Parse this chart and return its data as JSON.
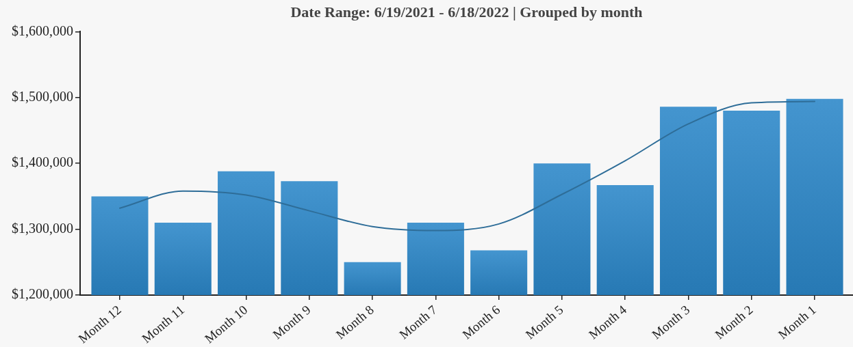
{
  "chart_data": {
    "type": "bar",
    "title": "Date Range: 6/19/2021 - 6/18/2022 | Grouped by month",
    "categories": [
      "Month 12",
      "Month 11",
      "Month 10",
      "Month 9",
      "Month 8",
      "Month 7",
      "Month 6",
      "Month 5",
      "Month 4",
      "Month 3",
      "Month 2",
      "Month 1"
    ],
    "series": [
      {
        "color": "#2b86c8",
        "values": [
          1350000,
          1310000,
          1388000,
          1373000,
          1250000,
          1310000,
          1268000,
          1400000,
          1367000,
          1486000,
          1480000,
          1498000
        ]
      },
      {
        "type": "line",
        "color": "#2e6d98",
        "marker": "none",
        "values": [
          1332000,
          1358000,
          1352000,
          1328000,
          1304000,
          1298000,
          1308000,
          1353000,
          1404000,
          1460000,
          1492000,
          1494000
        ]
      }
    ],
    "ylim": [
      1200000,
      1600000
    ],
    "yticks": [
      {
        "value": 1200000,
        "label": "$1,200,000"
      },
      {
        "value": 1300000,
        "label": "$1,300,000"
      },
      {
        "value": 1400000,
        "label": "$1,400,000"
      },
      {
        "value": 1500000,
        "label": "$1,500,000"
      },
      {
        "value": 1600000,
        "label": "$1,600,000"
      }
    ]
  }
}
